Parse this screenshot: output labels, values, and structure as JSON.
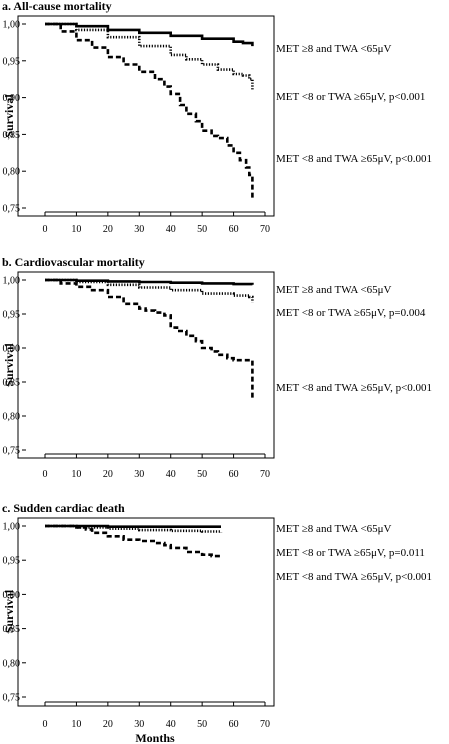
{
  "chart_data": [
    {
      "type": "line",
      "title": "a. All-cause mortality",
      "ylabel": "Survival",
      "xlabel": "",
      "xlim": [
        0,
        70
      ],
      "ylim": [
        0.75,
        1.0
      ],
      "xticks": [
        0,
        10,
        20,
        30,
        40,
        50,
        60,
        70
      ],
      "yticks": [
        "0,75",
        "0,80",
        "0,85",
        "0,90",
        "0,95",
        "1,00"
      ],
      "series": [
        {
          "name": "MET ≥8 and TWA <65μV",
          "style": "solid",
          "x": [
            0,
            10,
            20,
            30,
            40,
            50,
            60,
            63,
            66
          ],
          "y": [
            1.0,
            0.997,
            0.992,
            0.988,
            0.984,
            0.98,
            0.976,
            0.974,
            0.97
          ]
        },
        {
          "name": "MET <8 or TWA ≥65μV, p<0.001",
          "style": "dotted",
          "x": [
            0,
            10,
            20,
            30,
            40,
            45,
            50,
            55,
            60,
            63,
            65,
            66
          ],
          "y": [
            1.0,
            0.992,
            0.982,
            0.97,
            0.958,
            0.952,
            0.945,
            0.938,
            0.932,
            0.93,
            0.925,
            0.91
          ]
        },
        {
          "name": "MET <8 and TWA ≥65μV, p<0.001",
          "style": "dashed",
          "x": [
            0,
            5,
            10,
            15,
            20,
            25,
            30,
            35,
            38,
            40,
            43,
            45,
            48,
            50,
            53,
            55,
            58,
            60,
            62,
            64,
            65,
            66
          ],
          "y": [
            1.0,
            0.99,
            0.978,
            0.968,
            0.955,
            0.945,
            0.935,
            0.925,
            0.915,
            0.905,
            0.89,
            0.878,
            0.868,
            0.855,
            0.848,
            0.845,
            0.835,
            0.825,
            0.815,
            0.805,
            0.795,
            0.762
          ]
        }
      ]
    },
    {
      "type": "line",
      "title": "b. Cardiovascular mortality",
      "ylabel": "Survival",
      "xlabel": "",
      "xlim": [
        0,
        70
      ],
      "ylim": [
        0.75,
        1.0
      ],
      "xticks": [
        0,
        10,
        20,
        30,
        40,
        50,
        60,
        70
      ],
      "yticks": [
        "0,75",
        "0,80",
        "0,85",
        "0,90",
        "0,95",
        "1,00"
      ],
      "series": [
        {
          "name": "MET ≥8 and TWA <65μV",
          "style": "solid",
          "x": [
            0,
            10,
            20,
            30,
            40,
            50,
            60,
            66
          ],
          "y": [
            1.0,
            0.999,
            0.998,
            0.997,
            0.996,
            0.995,
            0.994,
            0.993
          ]
        },
        {
          "name": "MET <8 or TWA ≥65μV, p=0.004",
          "style": "dotted",
          "x": [
            0,
            10,
            20,
            30,
            40,
            50,
            60,
            65,
            66
          ],
          "y": [
            1.0,
            0.997,
            0.993,
            0.989,
            0.985,
            0.98,
            0.977,
            0.975,
            0.967
          ]
        },
        {
          "name": "MET <8 and TWA ≥65μV, p<0.001",
          "style": "dashed",
          "x": [
            0,
            5,
            10,
            15,
            20,
            25,
            30,
            32,
            35,
            38,
            40,
            42,
            45,
            48,
            50,
            53,
            55,
            58,
            60,
            62,
            65,
            66,
            66
          ],
          "y": [
            1.0,
            0.995,
            0.99,
            0.985,
            0.975,
            0.965,
            0.958,
            0.955,
            0.952,
            0.948,
            0.93,
            0.925,
            0.918,
            0.91,
            0.9,
            0.895,
            0.89,
            0.885,
            0.882,
            0.882,
            0.882,
            0.882,
            0.825
          ]
        }
      ]
    },
    {
      "type": "line",
      "title": "c. Sudden cardiac death",
      "ylabel": "Survival",
      "xlabel": "Months",
      "xlim": [
        0,
        70
      ],
      "ylim": [
        0.75,
        1.0
      ],
      "xticks": [
        0,
        10,
        20,
        30,
        40,
        50,
        60,
        70
      ],
      "yticks": [
        "0,75",
        "0,80",
        "0,85",
        "0,90",
        "0,95",
        "1,00"
      ],
      "series": [
        {
          "name": "MET ≥8 and TWA <65μV",
          "style": "solid",
          "x": [
            0,
            10,
            20,
            30,
            40,
            50,
            56
          ],
          "y": [
            1.0,
            1.0,
            0.999,
            0.999,
            0.999,
            0.999,
            0.999
          ]
        },
        {
          "name": "MET <8 or TWA ≥65μV, p=0.011",
          "style": "dotted",
          "x": [
            0,
            10,
            20,
            30,
            40,
            50,
            56
          ],
          "y": [
            1.0,
            0.998,
            0.996,
            0.994,
            0.993,
            0.992,
            0.991
          ]
        },
        {
          "name": "MET <8 and TWA ≥65μV, p<0.001",
          "style": "dashed",
          "x": [
            0,
            10,
            13,
            15,
            20,
            25,
            30,
            35,
            38,
            40,
            45,
            50,
            53,
            56
          ],
          "y": [
            1.0,
            0.998,
            0.995,
            0.99,
            0.985,
            0.98,
            0.978,
            0.975,
            0.972,
            0.968,
            0.962,
            0.958,
            0.956,
            0.955
          ]
        }
      ]
    }
  ]
}
